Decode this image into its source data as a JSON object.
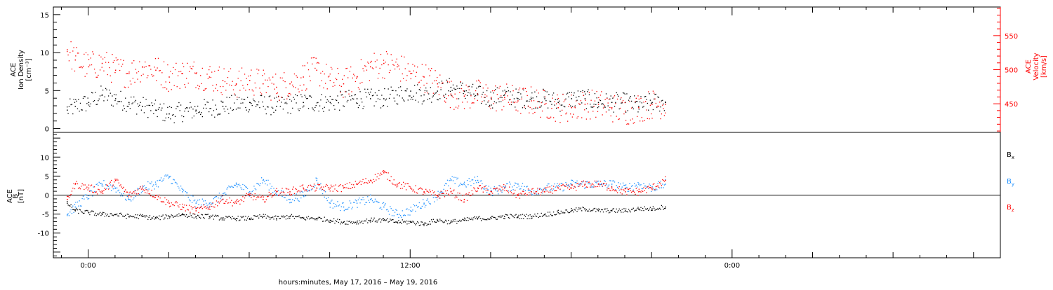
{
  "chart_data": [
    {
      "type": "scatter",
      "panel": "density_velocity",
      "ylabel_left": [
        "ACE",
        "Ion Density",
        "[cm⁻³]"
      ],
      "ylabel_right": [
        "ACE",
        "Velocity",
        "[km/s]"
      ],
      "ylim_left": [
        -0.5,
        16
      ],
      "ylim_right": [
        408,
        592
      ],
      "yticks_left": [
        0,
        5,
        10,
        15
      ],
      "yticks_right": [
        450,
        500,
        550
      ],
      "grid": false,
      "series": [
        {
          "axis": "left",
          "color": "#000000",
          "x": [
            -0.8,
            -0.5,
            0.0,
            0.5,
            1.0,
            1.5,
            2.0,
            2.5,
            3.0,
            4.0,
            5.0,
            6.0,
            7.0,
            8.0,
            9.0,
            10.0,
            10.5,
            11.0,
            11.5,
            12.0,
            12.5,
            13.0,
            13.5,
            14.0,
            14.5,
            15.0,
            15.5,
            16.0,
            16.5,
            17.0,
            17.5,
            18.0,
            18.5,
            19.0,
            19.5,
            20.0,
            20.5,
            21.0,
            21.5
          ],
          "y": [
            2.5,
            3.0,
            3.5,
            4.5,
            4.0,
            3.5,
            3.0,
            2.5,
            2.0,
            2.5,
            3.0,
            3.5,
            3.0,
            3.5,
            3.5,
            4.0,
            4.0,
            4.0,
            4.5,
            5.0,
            4.5,
            5.0,
            5.5,
            5.0,
            4.5,
            4.0,
            4.5,
            4.0,
            4.0,
            4.0,
            3.5,
            4.0,
            4.0,
            3.5,
            3.5,
            3.5,
            3.0,
            3.5,
            3.5
          ]
        },
        {
          "axis": "right",
          "color": "#ff0000",
          "x": [
            -0.8,
            -0.5,
            0.0,
            0.5,
            1.0,
            1.5,
            2.0,
            2.5,
            3.0,
            3.5,
            4.0,
            4.5,
            5.0,
            5.5,
            6.0,
            6.5,
            7.0,
            7.5,
            8.0,
            8.5,
            9.0,
            9.5,
            10.0,
            10.5,
            11.0,
            11.5,
            12.0,
            12.5,
            13.0,
            13.5,
            14.0,
            14.5,
            15.0,
            15.5,
            16.0,
            16.5,
            17.0,
            17.5,
            18.0,
            18.5,
            19.0,
            19.5,
            20.0,
            20.5,
            21.0,
            21.5
          ],
          "y": [
            530,
            515,
            505,
            510,
            500,
            495,
            505,
            500,
            490,
            495,
            495,
            490,
            485,
            480,
            485,
            480,
            475,
            480,
            490,
            500,
            485,
            480,
            490,
            505,
            510,
            505,
            495,
            490,
            480,
            465,
            462,
            465,
            460,
            460,
            455,
            455,
            450,
            445,
            445,
            450,
            450,
            445,
            440,
            445,
            450,
            450
          ]
        }
      ]
    },
    {
      "type": "scatter",
      "panel": "magnetic_field",
      "ylabel_left": [
        "ACE",
        "B",
        "[nT]"
      ],
      "ylim": [
        -16.5,
        16.5
      ],
      "yticks": [
        -10,
        -5,
        0,
        5,
        10
      ],
      "grid": false,
      "legend": "right",
      "series": [
        {
          "name": "Bx",
          "color": "#000000",
          "x": [
            -0.8,
            -0.5,
            0.0,
            0.5,
            1.0,
            1.5,
            2.0,
            2.5,
            3.0,
            3.5,
            4.0,
            4.5,
            5.0,
            5.5,
            6.0,
            6.5,
            7.0,
            7.5,
            8.0,
            8.5,
            9.0,
            9.5,
            10.0,
            10.5,
            11.0,
            11.5,
            12.0,
            12.5,
            13.0,
            13.5,
            14.0,
            14.5,
            15.0,
            15.5,
            16.0,
            16.5,
            17.0,
            17.5,
            18.0,
            18.5,
            19.0,
            19.5,
            20.0,
            20.5,
            21.0,
            21.5
          ],
          "y": [
            -2,
            -4,
            -4.5,
            -5,
            -5,
            -5.5,
            -5.5,
            -6,
            -5.5,
            -5,
            -5.5,
            -5.5,
            -6,
            -6,
            -6,
            -5.5,
            -6,
            -5.5,
            -6,
            -6,
            -6.5,
            -7,
            -7,
            -6.5,
            -6.5,
            -7,
            -7,
            -7.5,
            -6.5,
            -7,
            -6.5,
            -6,
            -6,
            -5.5,
            -5.5,
            -5.5,
            -5,
            -4.5,
            -4,
            -3.5,
            -4,
            -4,
            -4,
            -3.5,
            -3.5,
            -3
          ]
        },
        {
          "name": "By",
          "color": "#1e90ff",
          "x": [
            -0.8,
            -0.5,
            0.0,
            0.5,
            1.0,
            1.5,
            2.0,
            2.5,
            3.0,
            3.5,
            4.0,
            4.5,
            5.0,
            5.5,
            6.0,
            6.5,
            7.0,
            7.5,
            8.0,
            8.5,
            9.0,
            9.5,
            10.0,
            10.5,
            11.0,
            11.5,
            12.0,
            12.5,
            13.0,
            13.5,
            14.0,
            14.5,
            15.0,
            15.5,
            16.0,
            16.5,
            17.0,
            17.5,
            18.0,
            18.5,
            19.0,
            19.5,
            20.0,
            20.5,
            21.0,
            21.5
          ],
          "y": [
            -5,
            -3,
            0,
            3,
            2,
            -1,
            2,
            3,
            5,
            1,
            -2,
            -2,
            0,
            3,
            1,
            4,
            1,
            -1,
            0,
            4,
            -2,
            -3,
            -2,
            -1,
            -3,
            -5,
            -4,
            -2,
            0,
            4,
            3,
            4,
            1,
            2,
            3,
            1,
            2,
            2,
            3,
            3,
            3,
            3,
            2,
            3,
            2,
            3
          ]
        },
        {
          "name": "Bz",
          "color": "#ff0000",
          "x": [
            -0.8,
            -0.5,
            0.0,
            0.5,
            1.0,
            1.5,
            2.0,
            2.5,
            3.0,
            3.5,
            4.0,
            4.5,
            5.0,
            5.5,
            6.0,
            6.5,
            7.0,
            7.5,
            8.0,
            8.5,
            9.0,
            9.5,
            10.0,
            10.5,
            11.0,
            11.5,
            12.0,
            12.5,
            13.0,
            13.5,
            14.0,
            14.5,
            15.0,
            15.5,
            16.0,
            16.5,
            17.0,
            17.5,
            18.0,
            18.5,
            19.0,
            19.5,
            20.0,
            20.5,
            21.0,
            21.5
          ],
          "y": [
            -1,
            3,
            2,
            1,
            4,
            0,
            2,
            0,
            -2,
            -3,
            -4,
            -3,
            -1,
            -2,
            0,
            -1,
            1,
            1,
            2,
            2,
            2,
            2,
            3,
            4,
            6,
            3,
            2,
            1,
            0,
            1,
            -1,
            2,
            1,
            2,
            0,
            1,
            1,
            2,
            2,
            3,
            3,
            2,
            1,
            1,
            2,
            4
          ]
        }
      ]
    }
  ],
  "page": {
    "xlabel": "hours:minutes, May 17, 2016 – May 19, 2016",
    "xticks": [
      {
        "hour": 0,
        "label": "0:00"
      },
      {
        "hour": 12,
        "label": "12:00"
      },
      {
        "hour": 24,
        "label": "0:00"
      }
    ],
    "xlim_hours": [
      -1.3,
      34.0
    ],
    "legend_labels": [
      {
        "key": "Bx",
        "text": "B",
        "sub": "x",
        "color": "#000000"
      },
      {
        "key": "By",
        "text": "B",
        "sub": "y",
        "color": "#1e90ff"
      },
      {
        "key": "Bz",
        "text": "B",
        "sub": "z",
        "color": "#ff0000"
      }
    ]
  }
}
